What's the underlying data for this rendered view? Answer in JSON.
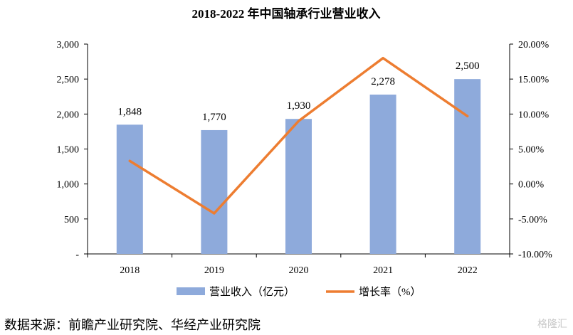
{
  "chart_data": {
    "type": "bar+line",
    "title": "2018-2022 年中国轴承行业营业收入",
    "categories": [
      "2018",
      "2019",
      "2020",
      "2021",
      "2022"
    ],
    "series": [
      {
        "name": "营业收入（亿元）",
        "type": "bar",
        "axis": "left",
        "values": [
          1848,
          1770,
          1930,
          2278,
          2500
        ],
        "labels": [
          "1,848",
          "1,770",
          "1,930",
          "2,278",
          "2,500"
        ],
        "color": "#8eaadb"
      },
      {
        "name": "增长率（%）",
        "type": "line",
        "axis": "right",
        "values": [
          3.3,
          -4.2,
          9.0,
          18.0,
          9.7
        ],
        "color": "#ed7d31"
      }
    ],
    "left_axis": {
      "ylim": [
        0,
        3000
      ],
      "ticks": [
        0,
        500,
        1000,
        1500,
        2000,
        2500,
        3000
      ],
      "tick_labels": [
        "-",
        "500",
        "1,000",
        "1,500",
        "2,000",
        "2,500",
        "3,000"
      ]
    },
    "right_axis": {
      "ylim": [
        -10,
        20
      ],
      "ticks": [
        -10,
        -5,
        0,
        5,
        10,
        15,
        20
      ],
      "tick_labels": [
        "-10.00%",
        "-5.00%",
        "0.00%",
        "5.00%",
        "10.00%",
        "15.00%",
        "20.00%"
      ]
    },
    "legend_position": "bottom",
    "grid": false
  },
  "source_text": "数据来源：前瞻产业研究院、华经产业研究院",
  "watermark_text": "格隆汇"
}
